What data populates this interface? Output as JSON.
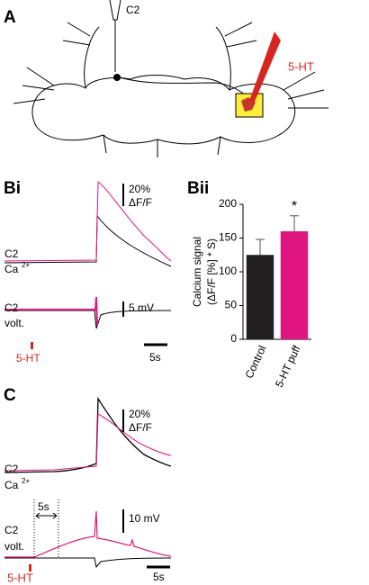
{
  "panel_a": {
    "label": "A",
    "electrode_label": "C2",
    "puff_label": "5-HT"
  },
  "panel_bi": {
    "label": "Bi",
    "calcium_scale": [
      "20%",
      "ΔF/F"
    ],
    "calcium_trace": [
      "C2",
      "Ca",
      "2+"
    ],
    "voltage_scale": "5 mV",
    "voltage_trace": [
      "C2",
      "volt."
    ],
    "stimulus": "5-HT",
    "time_scale": "5s"
  },
  "panel_c": {
    "label": "C",
    "calcium_scale": [
      "20%",
      "ΔF/F"
    ],
    "calcium_trace": [
      "C2",
      "Ca",
      "2+"
    ],
    "voltage_scale": "10 mV",
    "voltage_trace": [
      "C2",
      "volt."
    ],
    "delay": "5s",
    "stimulus": "5-HT",
    "time_scale": "5s"
  },
  "chart_data": {
    "type": "bar",
    "label": "Bii",
    "ylabel": [
      "Calcium signal",
      "(ΔF/F [%] * S)"
    ],
    "categories": [
      "Control",
      "5-HT puff"
    ],
    "values": [
      125,
      160
    ],
    "errors": [
      23,
      23
    ],
    "colors": [
      "#231f20",
      "#e0157f"
    ],
    "ylim": [
      0,
      200
    ],
    "yticks": [
      0,
      50,
      100,
      150,
      200
    ],
    "annotation": "*"
  }
}
